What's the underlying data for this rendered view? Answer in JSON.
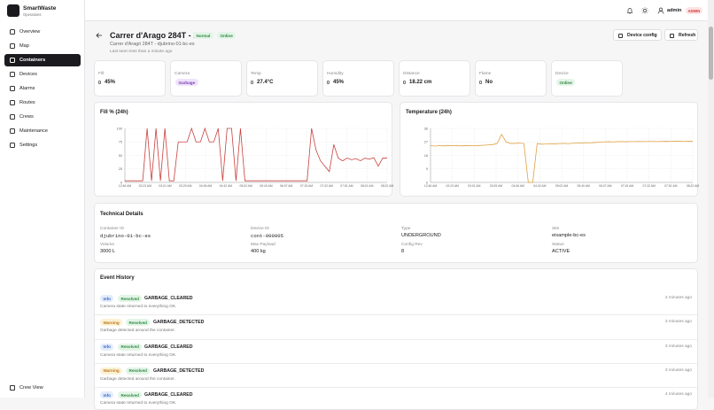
{
  "sidebar": {
    "brand": "SmartWaste",
    "tagline": "Operations",
    "nav": [
      "Overview",
      "Map",
      "Containers",
      "Devices",
      "Alarms",
      "Routes",
      "Crews",
      "Maintenance",
      "Settings"
    ],
    "active": 2,
    "footer": "Crew View"
  },
  "topbar": {
    "user": "admin",
    "role": "ADMIN"
  },
  "header": {
    "title": "Carrer d'Arago 284T - 1",
    "badges": [
      "Normal",
      "Online"
    ],
    "subtitle": "Carrer d'Aragó 284T - djubrino-01-bc-es",
    "last_seen": "Last seen less than a minute ago",
    "actions": [
      "Device config",
      "Refresh"
    ]
  },
  "stats": [
    {
      "label": "Fill",
      "value": "45%"
    },
    {
      "label": "Camera",
      "value": "Garbage",
      "badge": "purple"
    },
    {
      "label": "Temp",
      "value": "27.4°C"
    },
    {
      "label": "Humidity",
      "value": "45%"
    },
    {
      "label": "Distance",
      "value": "18.22 cm"
    },
    {
      "label": "Flame",
      "value": "No"
    },
    {
      "label": "Device",
      "value": "Online",
      "badge": "green"
    }
  ],
  "charts": [
    {
      "type": "line",
      "title": "Fill % (24h)",
      "color": "#c9403d",
      "ylim": [
        0,
        100
      ],
      "yticks": [
        0,
        25,
        50,
        75,
        100
      ],
      "xticks": [
        "12:46 AM",
        "02:23 AM",
        "03:01 AM",
        "03:29 AM",
        "04:06 AM",
        "04:42 AM",
        "05:02 AM",
        "05:40 AM",
        "06:07 AM",
        "07:15 AM",
        "07:32 AM",
        "07:51 AM",
        "08:01 AM",
        "08:22 AM"
      ],
      "values": [
        3,
        3,
        3,
        3,
        3,
        100,
        3,
        100,
        3,
        100,
        3,
        3,
        75,
        75,
        75,
        100,
        75,
        75,
        100,
        75,
        75,
        100,
        3,
        100,
        100,
        3,
        100,
        3,
        3,
        3,
        3,
        3,
        3,
        3,
        3,
        3,
        3,
        3,
        3,
        3,
        3,
        3,
        100,
        60,
        40,
        30,
        20,
        70,
        45,
        40,
        45,
        42,
        44,
        40,
        45,
        43,
        46,
        30,
        45,
        45
      ]
    },
    {
      "type": "line",
      "title": "Temperature (24h)",
      "color": "#e0a040",
      "ylim": [
        0,
        36
      ],
      "yticks": [
        0,
        9,
        18,
        27,
        36
      ],
      "xticks": [
        "12:46 AM",
        "02:23 AM",
        "03:01 AM",
        "03:29 AM",
        "04:06 AM",
        "04:42 AM",
        "05:02 AM",
        "05:40 AM",
        "06:07 AM",
        "07:15 AM",
        "07:32 AM",
        "07:51 AM",
        "08:22 AM"
      ],
      "values": [
        24.5,
        24.2,
        24.5,
        24.3,
        24.6,
        24.4,
        24.5,
        24.3,
        24.6,
        24.5,
        24.4,
        24.6,
        24.8,
        25,
        25.2,
        26,
        32,
        27,
        26,
        26,
        26.2,
        26,
        0,
        0,
        26,
        25.5,
        25.6,
        25.8,
        25.7,
        25.9,
        26,
        25.8,
        26.1,
        26.2,
        26.3,
        26.5,
        26.4,
        26.6,
        26.8,
        27,
        27.1,
        27,
        27.1,
        27.2,
        27.1,
        27.2,
        27.2,
        27.3,
        27.2,
        27.3,
        27.3,
        27.2,
        27.3,
        27.4,
        27.3,
        27.4,
        27.4,
        27.3,
        27.4,
        27.4
      ]
    }
  ],
  "technical": {
    "title": "Technical Details",
    "fields": [
      {
        "label": "Container ID",
        "value": "djubrino-01-bc-es",
        "mono": true
      },
      {
        "label": "Device ID",
        "value": "cont-000005",
        "mono": true
      },
      {
        "label": "Type",
        "value": "UNDERGROUND"
      },
      {
        "label": "Site",
        "value": "eixample-bc-es"
      },
      {
        "label": "Volume",
        "value": "3000 L"
      },
      {
        "label": "Max Payload",
        "value": "400 kg"
      },
      {
        "label": "Config Rev",
        "value": "8"
      },
      {
        "label": "Status",
        "value": "ACTIVE"
      }
    ]
  },
  "events": {
    "title": "Event History",
    "items": [
      {
        "level": "Info",
        "status": "Resolved",
        "code": "GARBAGE_CLEARED",
        "description": "Camera state returned to everything OK.",
        "time": "2 minutes ago"
      },
      {
        "level": "Warning",
        "status": "Resolved",
        "code": "GARBAGE_DETECTED",
        "description": "Garbage detected around the container.",
        "time": "3 minutes ago"
      },
      {
        "level": "Info",
        "status": "Resolved",
        "code": "GARBAGE_CLEARED",
        "description": "Camera state returned to everything OK.",
        "time": "3 minutes ago"
      },
      {
        "level": "Warning",
        "status": "Resolved",
        "code": "GARBAGE_DETECTED",
        "description": "Garbage detected around the container.",
        "time": "3 minutes ago"
      },
      {
        "level": "Info",
        "status": "Resolved",
        "code": "GARBAGE_CLEARED",
        "description": "Camera state returned to everything OK.",
        "time": "4 minutes ago"
      }
    ]
  }
}
